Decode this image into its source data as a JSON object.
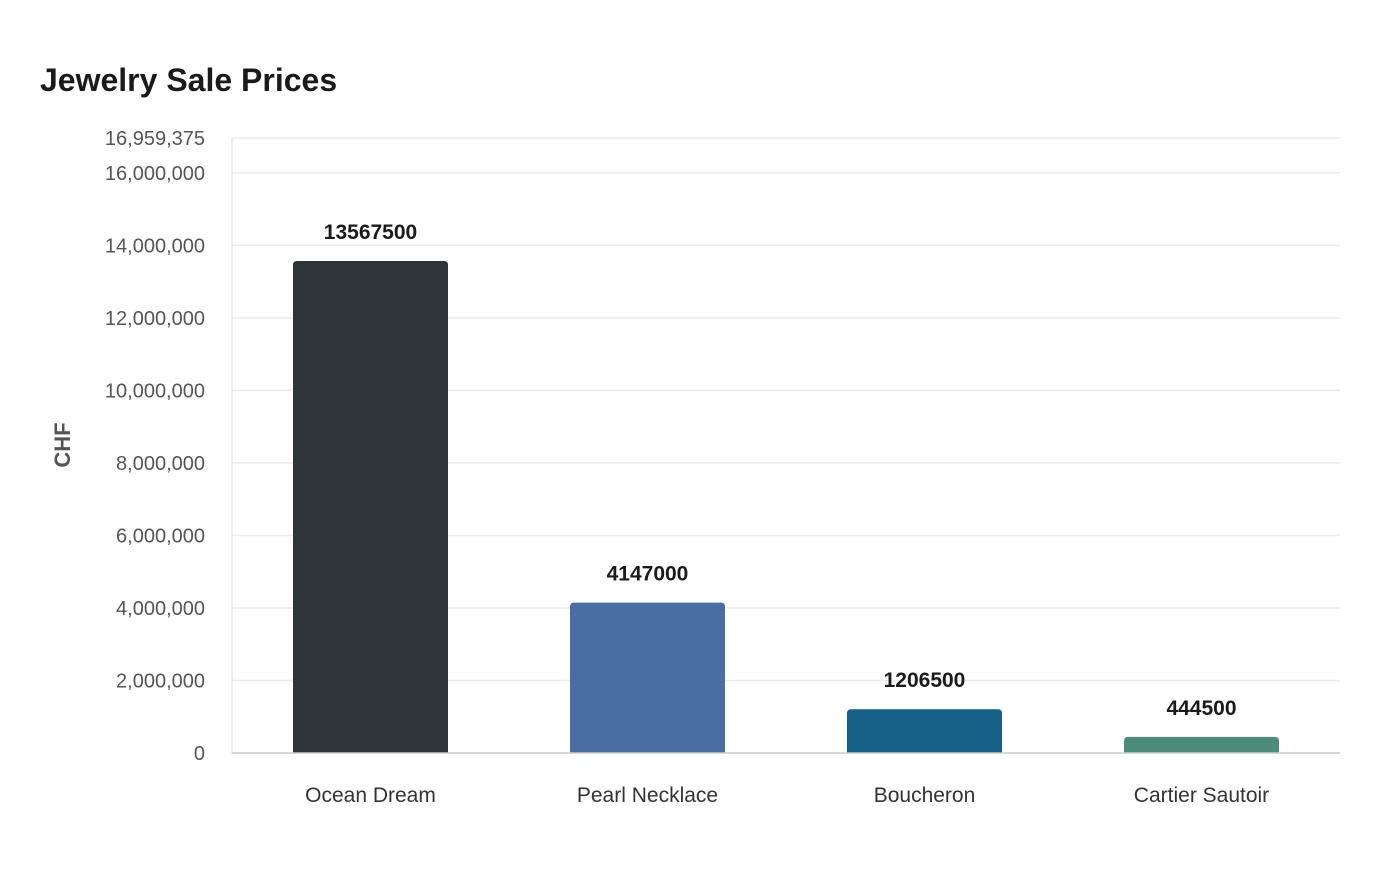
{
  "chart_data": {
    "type": "bar",
    "title": "Jewelry Sale Prices",
    "ylabel": "CHF",
    "xlabel": "",
    "categories": [
      "Ocean Dream",
      "Pearl Necklace",
      "Boucheron",
      "Cartier Sautoir"
    ],
    "values": [
      13567500,
      4147000,
      1206500,
      444500
    ],
    "data_labels": [
      "13567500",
      "4147000",
      "1206500",
      "444500"
    ],
    "bar_colors": [
      "#2e3538",
      "#4a6ea3",
      "#165f87",
      "#4e8c7a"
    ],
    "ylim": [
      0,
      16959375
    ],
    "y_ticks": [
      0,
      2000000,
      4000000,
      6000000,
      8000000,
      10000000,
      12000000,
      14000000,
      16000000,
      16959375
    ],
    "y_tick_labels": [
      "0",
      "2,000,000",
      "4,000,000",
      "6,000,000",
      "8,000,000",
      "10,000,000",
      "12,000,000",
      "14,000,000",
      "16,000,000",
      "16,959,375"
    ],
    "grid": true,
    "legend": "none"
  }
}
